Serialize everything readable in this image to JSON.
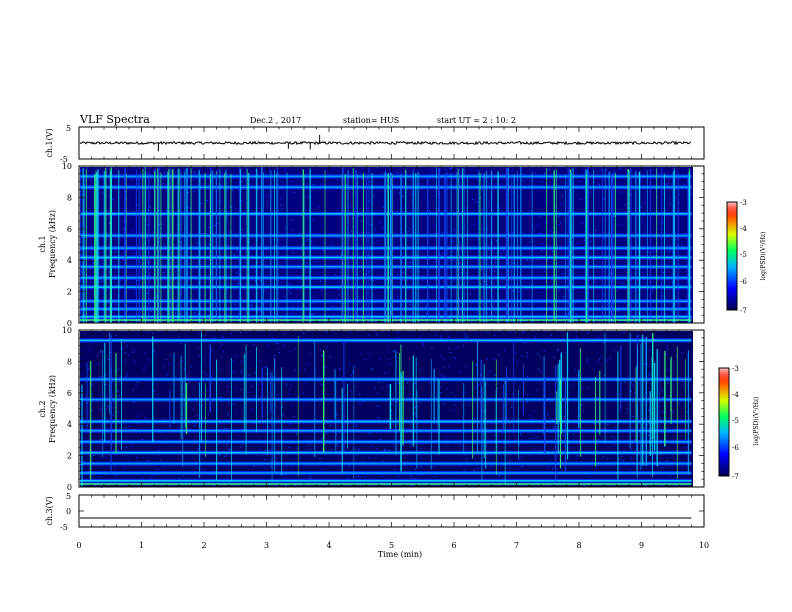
{
  "header": {
    "title": "VLF Spectra",
    "date": "Dec.2 , 2017",
    "station": "station= HUS",
    "start": "start  UT =  2 : 10: 2"
  },
  "chart_data": [
    {
      "type": "line",
      "name": "ch1-waveform",
      "ylabel": "ch.1(V)",
      "ylim": [
        -5,
        5
      ],
      "ytick_labels": [
        "5",
        "-5"
      ],
      "xlim": [
        0,
        10
      ],
      "baseline_value": 0,
      "spikes": [
        {
          "x": 1.27,
          "y": -2.6
        },
        {
          "x": 3.35,
          "y": -1.8
        },
        {
          "x": 3.7,
          "y": -2.0
        },
        {
          "x": 3.85,
          "y": 2.5
        }
      ]
    },
    {
      "type": "heatmap",
      "name": "ch1-spectrogram",
      "ylabel_top": "ch.1",
      "ylabel": "Frequency (kHz)",
      "ylim": [
        0,
        10
      ],
      "ytick_labels": [
        "0",
        "2",
        "4",
        "6",
        "8",
        "10"
      ],
      "xlim": [
        0,
        9.8
      ],
      "colorbar": {
        "label": "log(PSD)(V²/Hz)",
        "range": [
          -7,
          -3
        ],
        "tick_labels": [
          "-3",
          "-4",
          "-5",
          "-6",
          "-7"
        ]
      },
      "bands_khz": [
        0.4,
        0.9,
        1.4,
        2.3,
        2.9,
        3.6,
        4.2,
        4.8,
        5.6,
        7.0,
        8.7,
        9.4
      ],
      "activity": "high"
    },
    {
      "type": "heatmap",
      "name": "ch2-spectrogram",
      "ylabel_top": "ch.2",
      "ylabel": "Frequency (kHz)",
      "ylim": [
        0,
        10
      ],
      "ytick_labels": [
        "0",
        "2",
        "4",
        "6",
        "8",
        "10"
      ],
      "xlim": [
        0,
        9.8
      ],
      "colorbar": {
        "label": "log(PSD)(V²/Hz)",
        "range": [
          -7,
          -3
        ],
        "tick_labels": [
          "-3",
          "-4",
          "-5",
          "-6",
          "-7"
        ]
      },
      "bands_khz": [
        0.4,
        0.9,
        1.5,
        2.2,
        2.9,
        3.6,
        4.2,
        5.6,
        6.9,
        9.4
      ],
      "activity": "medium"
    },
    {
      "type": "line",
      "name": "ch3-waveform",
      "ylabel": "ch.3(V)",
      "ylim": [
        -5,
        5
      ],
      "ytick_labels": [
        "5",
        "0",
        "-5"
      ],
      "xlim": [
        0,
        10
      ],
      "baseline_value": -2.2
    }
  ],
  "xaxis": {
    "label": "Time (min)",
    "tick_labels": [
      "0",
      "1",
      "2",
      "3",
      "4",
      "5",
      "6",
      "7",
      "8",
      "9",
      "10"
    ]
  },
  "colors": {
    "background": "#000080",
    "axis": "#000000"
  }
}
